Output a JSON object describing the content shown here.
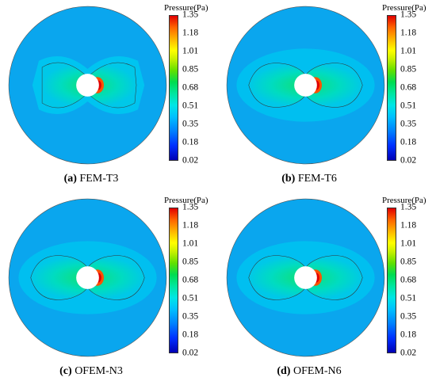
{
  "legend": {
    "title": "Pressure(Pa)",
    "ticks": [
      "1.35",
      "1.18",
      "1.01",
      "0.85",
      "0.68",
      "0.51",
      "0.35",
      "0.18",
      "0.02"
    ]
  },
  "panels": [
    {
      "letter": "(a)",
      "name": "FEM-T3"
    },
    {
      "letter": "(b)",
      "name": "FEM-T6"
    },
    {
      "letter": "(c)",
      "name": "OFEM-N3"
    },
    {
      "letter": "(d)",
      "name": "OFEM-N6"
    }
  ],
  "colors": {
    "background": "#00a8f0",
    "mid": "#00d8e0",
    "high": "#00e070",
    "peak": "#ff2000",
    "low": "#0010e0"
  }
}
